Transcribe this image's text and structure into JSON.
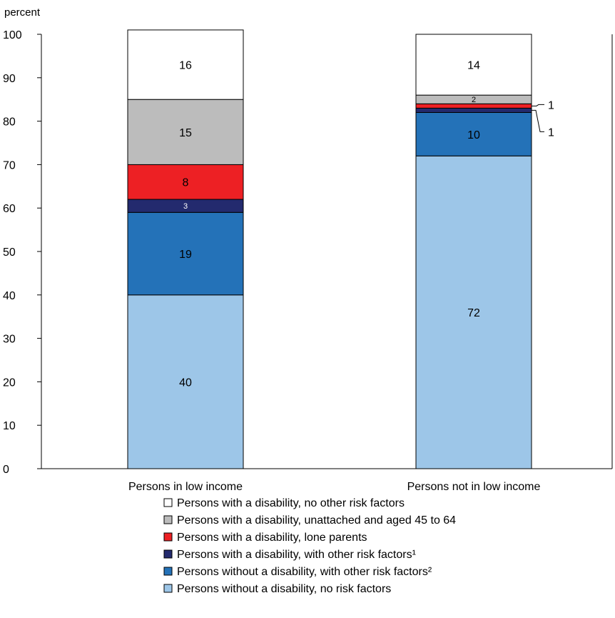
{
  "chart_data": {
    "type": "bar",
    "stacked": true,
    "ylabel": "percent",
    "ylim": [
      0,
      100
    ],
    "yticks": [
      0,
      10,
      20,
      30,
      40,
      50,
      60,
      70,
      80,
      90,
      100
    ],
    "grid": false,
    "legend_position": "bottom",
    "categories": [
      "Persons in low income",
      "Persons not in low income"
    ],
    "series": [
      {
        "name": "Persons without a disability, no risk factors",
        "color": "#9dc6e8",
        "values": [
          40,
          72
        ],
        "labels": [
          "40",
          "72"
        ]
      },
      {
        "name": "Persons without a disability, with other risk factors²",
        "color": "#2472b8",
        "values": [
          19,
          10
        ],
        "labels": [
          "19",
          "10"
        ]
      },
      {
        "name": "Persons with a disability, with other risk factors¹",
        "color": "#232a6e",
        "values": [
          3,
          1
        ],
        "labels": [
          "3",
          "1"
        ]
      },
      {
        "name": "Persons with a disability, lone parents",
        "color": "#ed2024",
        "values": [
          8,
          1
        ],
        "labels": [
          "8",
          "1"
        ]
      },
      {
        "name": "Persons with a disability, unattached and aged 45 to 64",
        "color": "#bcbcbc",
        "values": [
          15,
          2
        ],
        "labels": [
          "15",
          "2"
        ]
      },
      {
        "name": "Persons with a disability, no other risk factors",
        "color": "#ffffff",
        "values": [
          16,
          14
        ],
        "labels": [
          "16",
          "14"
        ]
      }
    ],
    "legend_order": [
      5,
      4,
      3,
      2,
      1,
      0
    ]
  }
}
